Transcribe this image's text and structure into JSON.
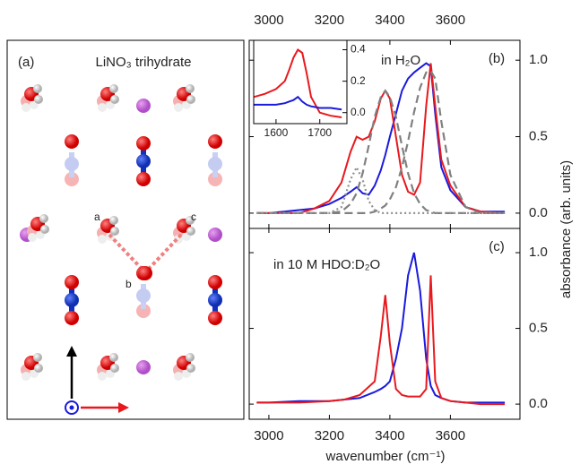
{
  "figure": {
    "ylabel": "absorbance (arb. units)",
    "xlabel": "wavenumber (cm⁻¹)"
  },
  "diagram": {
    "label": "(a)",
    "title": "LiNO₃ trihydrate",
    "sites": [
      "a",
      "b",
      "c"
    ]
  },
  "chart_data": [
    {
      "type": "line",
      "label": "(b)",
      "annotation": "in H₂O",
      "x": [
        2960,
        3000,
        3050,
        3100,
        3150,
        3200,
        3240,
        3270,
        3290,
        3310,
        3330,
        3350,
        3370,
        3385,
        3400,
        3420,
        3440,
        3460,
        3480,
        3500,
        3520,
        3535,
        3550,
        3570,
        3600,
        3650,
        3700,
        3780
      ],
      "series": [
        {
          "color": "#1a1adc",
          "style": "solid",
          "values": [
            0.0,
            0.0,
            0.01,
            0.02,
            0.03,
            0.06,
            0.1,
            0.14,
            0.17,
            0.13,
            0.12,
            0.18,
            0.28,
            0.38,
            0.5,
            0.65,
            0.8,
            0.88,
            0.92,
            0.95,
            0.98,
            0.96,
            0.65,
            0.3,
            0.15,
            0.04,
            0.01,
            0.01
          ]
        },
        {
          "color": "#e8191e",
          "style": "solid",
          "values": [
            0.0,
            0.0,
            0.0,
            0.0,
            0.03,
            0.08,
            0.2,
            0.4,
            0.5,
            0.48,
            0.5,
            0.6,
            0.75,
            0.8,
            0.75,
            0.5,
            0.25,
            0.14,
            0.12,
            0.2,
            0.7,
            0.98,
            0.7,
            0.35,
            0.18,
            0.04,
            0.01,
            0.0
          ]
        },
        {
          "color": "#808080",
          "style": "dashed",
          "values": [
            0.0,
            0.0,
            0.0,
            0.0,
            0.0,
            0.0,
            0.01,
            0.06,
            0.13,
            0.26,
            0.44,
            0.63,
            0.76,
            0.8,
            0.76,
            0.63,
            0.44,
            0.26,
            0.13,
            0.06,
            0.02,
            0.01,
            0.0,
            0.0,
            0.0,
            0.0,
            0.0,
            0.0
          ]
        },
        {
          "color": "#808080",
          "style": "dashed",
          "values": [
            0.0,
            0.0,
            0.0,
            0.0,
            0.0,
            0.0,
            0.0,
            0.0,
            0.0,
            0.0,
            0.0,
            0.01,
            0.03,
            0.05,
            0.09,
            0.17,
            0.3,
            0.47,
            0.66,
            0.82,
            0.92,
            0.93,
            0.88,
            0.6,
            0.25,
            0.04,
            0.0,
            0.0
          ]
        },
        {
          "color": "#909090",
          "style": "dotted",
          "values": [
            0.0,
            0.0,
            0.0,
            0.0,
            0.0,
            0.0,
            0.04,
            0.22,
            0.3,
            0.22,
            0.08,
            0.02,
            0.0,
            0.0,
            0.0,
            0.0,
            0.0,
            0.0,
            0.0,
            0.0,
            0.0,
            0.0,
            0.0,
            0.0,
            0.0,
            0.0,
            0.0,
            0.0
          ]
        }
      ],
      "xlim": [
        2935,
        3830
      ],
      "xticks": [
        3000,
        3200,
        3400,
        3600
      ],
      "ylim": [
        -0.1,
        1.13
      ],
      "yticks": [
        {
          "value": 0,
          "label": "0.0"
        },
        {
          "value": 0.5,
          "label": "0.5"
        },
        {
          "value": 1,
          "label": "1.0"
        }
      ]
    },
    {
      "type": "line",
      "label": "(c)",
      "annotation": "in 10 M HDO:D₂O",
      "x": [
        2960,
        3000,
        3100,
        3200,
        3250,
        3300,
        3350,
        3370,
        3385,
        3400,
        3420,
        3440,
        3460,
        3480,
        3500,
        3520,
        3535,
        3550,
        3570,
        3600,
        3650,
        3700,
        3780
      ],
      "series": [
        {
          "color": "#1a1adc",
          "style": "solid",
          "values": [
            0.01,
            0.01,
            0.02,
            0.02,
            0.03,
            0.04,
            0.08,
            0.1,
            0.12,
            0.15,
            0.3,
            0.5,
            0.85,
            1.0,
            0.75,
            0.3,
            0.12,
            0.06,
            0.04,
            0.02,
            0.01,
            0.01,
            0.01
          ]
        },
        {
          "color": "#e8191e",
          "style": "solid",
          "values": [
            0.01,
            0.01,
            0.01,
            0.02,
            0.03,
            0.06,
            0.15,
            0.45,
            0.72,
            0.4,
            0.1,
            0.06,
            0.05,
            0.05,
            0.05,
            0.1,
            0.85,
            0.15,
            0.04,
            0.02,
            0.01,
            0.0,
            0.0
          ]
        }
      ],
      "xlim": [
        2935,
        3830
      ],
      "xticks": [
        3000,
        3200,
        3400,
        3600
      ],
      "ylim": [
        -0.1,
        1.16
      ],
      "yticks": [
        {
          "value": 0,
          "label": "0.0"
        },
        {
          "value": 0.5,
          "label": "0.5"
        },
        {
          "value": 1,
          "label": "1.0"
        }
      ]
    },
    {
      "type": "line",
      "x": [
        1550,
        1575,
        1600,
        1620,
        1630,
        1640,
        1650,
        1660,
        1670,
        1680,
        1700,
        1725,
        1750
      ],
      "series": [
        {
          "color": "#e8191e",
          "style": "solid",
          "values": [
            0.1,
            0.12,
            0.15,
            0.2,
            0.27,
            0.35,
            0.4,
            0.38,
            0.25,
            0.1,
            0.0,
            -0.02,
            -0.03
          ]
        },
        {
          "color": "#1a1adc",
          "style": "solid",
          "values": [
            0.05,
            0.05,
            0.05,
            0.06,
            0.07,
            0.08,
            0.1,
            0.07,
            0.05,
            0.04,
            0.03,
            0.03,
            0.02
          ]
        }
      ],
      "xlim": [
        1549,
        1762
      ],
      "xticks": [
        1600,
        1700
      ],
      "ylim": [
        -0.07,
        0.46
      ],
      "yticks": [
        {
          "value": 0,
          "label": "0.0"
        },
        {
          "value": 0.2,
          "label": "0.2"
        },
        {
          "value": 0.4,
          "label": "0.4"
        }
      ]
    }
  ]
}
